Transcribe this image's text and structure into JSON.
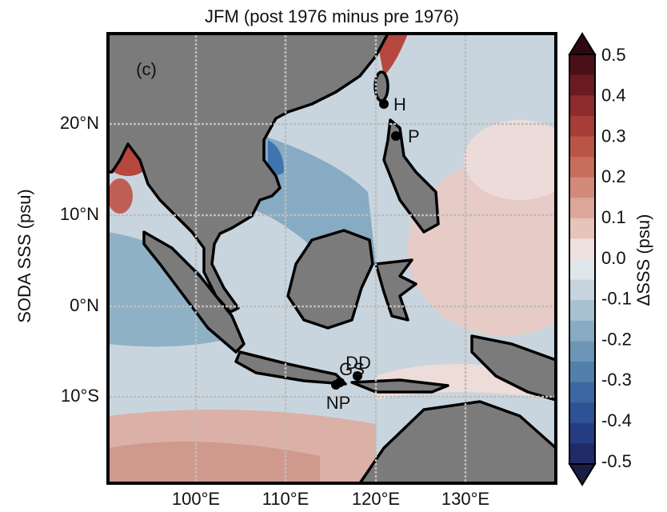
{
  "title": "JFM (post 1976 minus pre 1976)",
  "panel_label": "(c)",
  "y_label": "SODA SSS (psu)",
  "lat_ticks": [
    "20°N",
    "10°N",
    "0°N",
    "10°S"
  ],
  "lon_ticks": [
    "100°E",
    "110°E",
    "120°E",
    "130°E"
  ],
  "colorbar": {
    "label": "ΔSSS (psu)",
    "ticks": [
      "0.5",
      "0.4",
      "0.3",
      "0.2",
      "0.1",
      "0.0",
      "-0.1",
      "-0.2",
      "-0.3",
      "-0.4",
      "-0.5"
    ]
  },
  "stations": [
    {
      "label": "H"
    },
    {
      "label": "P"
    },
    {
      "label": "DD"
    },
    {
      "label": "GS"
    },
    {
      "label": "NP"
    }
  ]
}
